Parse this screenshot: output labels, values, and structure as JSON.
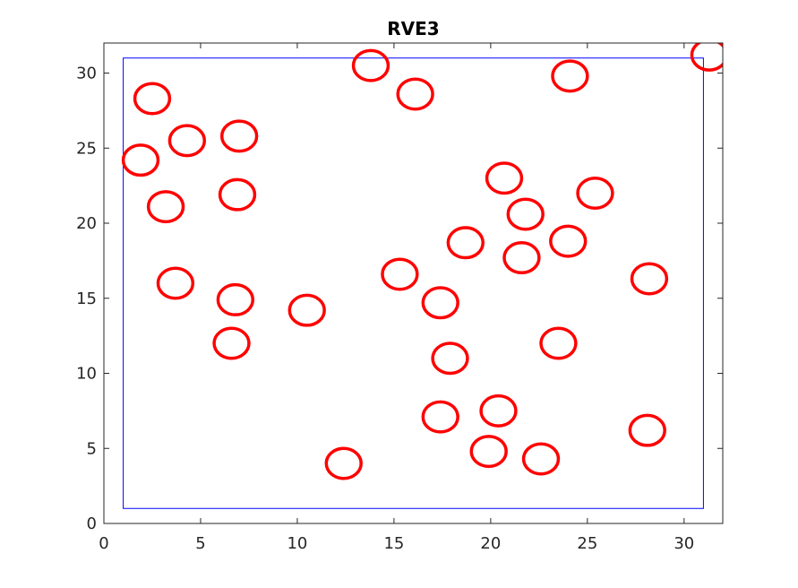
{
  "chart_data": {
    "type": "scatter",
    "title": "RVE3",
    "xlabel": "",
    "ylabel": "",
    "xlim": [
      0,
      32
    ],
    "ylim": [
      0,
      32
    ],
    "grid": false,
    "x_ticks": [
      "0",
      "5",
      "10",
      "15",
      "20",
      "25",
      "30"
    ],
    "y_ticks": [
      "0",
      "5",
      "10",
      "15",
      "20",
      "25",
      "30"
    ],
    "boundary": {
      "x_min": 1,
      "x_max": 31,
      "y_min": 1,
      "y_max": 31,
      "color": "#0000ff"
    },
    "inclusion_color": "#ff0000",
    "inclusion_radius_x": 0.9,
    "inclusion_radius_y": 1.0,
    "inclusions": [
      {
        "x": 31.3,
        "y": 31.2
      },
      {
        "x": 2.5,
        "y": 28.3
      },
      {
        "x": 13.8,
        "y": 30.5
      },
      {
        "x": 16.1,
        "y": 28.6
      },
      {
        "x": 24.1,
        "y": 29.8
      },
      {
        "x": 7.0,
        "y": 25.8
      },
      {
        "x": 4.3,
        "y": 25.5
      },
      {
        "x": 1.9,
        "y": 24.2
      },
      {
        "x": 20.7,
        "y": 23.0
      },
      {
        "x": 25.4,
        "y": 22.0
      },
      {
        "x": 6.9,
        "y": 21.9
      },
      {
        "x": 3.2,
        "y": 21.1
      },
      {
        "x": 21.8,
        "y": 20.6
      },
      {
        "x": 24.0,
        "y": 18.8
      },
      {
        "x": 18.7,
        "y": 18.7
      },
      {
        "x": 21.6,
        "y": 17.7
      },
      {
        "x": 28.2,
        "y": 16.3
      },
      {
        "x": 3.7,
        "y": 16.0
      },
      {
        "x": 15.3,
        "y": 16.6
      },
      {
        "x": 6.8,
        "y": 14.9
      },
      {
        "x": 17.4,
        "y": 14.7
      },
      {
        "x": 10.5,
        "y": 14.2
      },
      {
        "x": 6.6,
        "y": 12.0
      },
      {
        "x": 23.5,
        "y": 12.0
      },
      {
        "x": 17.9,
        "y": 11.0
      },
      {
        "x": 20.4,
        "y": 7.5
      },
      {
        "x": 17.4,
        "y": 7.1
      },
      {
        "x": 28.1,
        "y": 6.2
      },
      {
        "x": 19.9,
        "y": 4.8
      },
      {
        "x": 22.6,
        "y": 4.3
      },
      {
        "x": 12.4,
        "y": 4.0
      }
    ]
  }
}
